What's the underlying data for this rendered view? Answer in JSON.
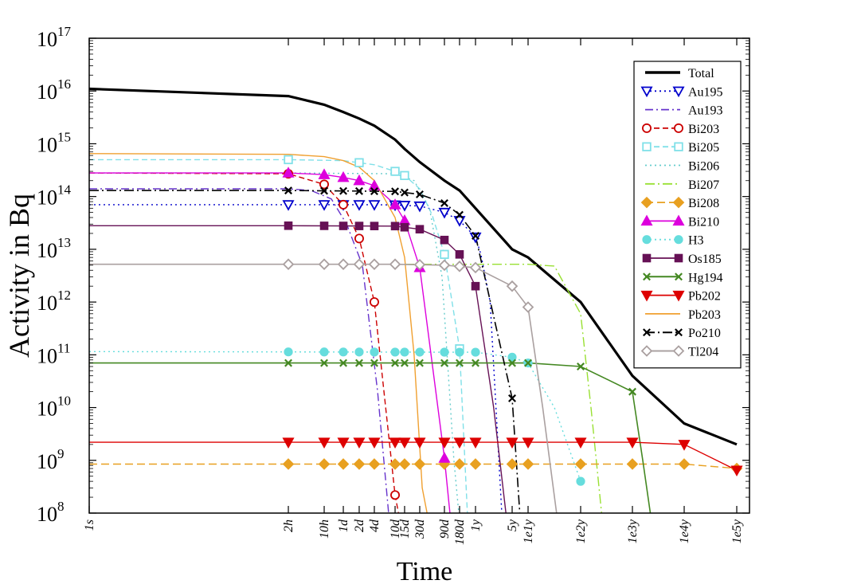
{
  "chart_data": {
    "type": "line",
    "title": "",
    "xlabel": "Time",
    "ylabel": "Activity in Bq",
    "y_scale": "log",
    "x_scale": "log",
    "ylim": [
      100000000.0,
      1e+17
    ],
    "xlim_seconds": [
      1,
      3156000000000.0
    ],
    "legend_position": "top-right",
    "x_ticks": [
      {
        "label": "1s",
        "seconds": 1
      },
      {
        "label": "2h",
        "seconds": 7200
      },
      {
        "label": "10h",
        "seconds": 36000
      },
      {
        "label": "1d",
        "seconds": 86400
      },
      {
        "label": "2d",
        "seconds": 172800
      },
      {
        "label": "4d",
        "seconds": 345600
      },
      {
        "label": "10d",
        "seconds": 864000
      },
      {
        "label": "15d",
        "seconds": 1296000
      },
      {
        "label": "30d",
        "seconds": 2592000
      },
      {
        "label": "90d",
        "seconds": 7776000
      },
      {
        "label": "180d",
        "seconds": 15552000
      },
      {
        "label": "1y",
        "seconds": 31557600
      },
      {
        "label": "5y",
        "seconds": 157788000
      },
      {
        "label": "1e1y",
        "seconds": 315576000
      },
      {
        "label": "1e2y",
        "seconds": 3155760000
      },
      {
        "label": "1e3y",
        "seconds": 31557600000
      },
      {
        "label": "1e4y",
        "seconds": 315576000000
      },
      {
        "label": "1e5y",
        "seconds": 3155760000000
      }
    ],
    "y_ticks": [
      {
        "base": "10",
        "exp": "8",
        "value": 100000000.0
      },
      {
        "base": "10",
        "exp": "9",
        "value": 1000000000.0
      },
      {
        "base": "10",
        "exp": "10",
        "value": 10000000000.0
      },
      {
        "base": "10",
        "exp": "11",
        "value": 100000000000.0
      },
      {
        "base": "10",
        "exp": "12",
        "value": 1000000000000.0
      },
      {
        "base": "10",
        "exp": "13",
        "value": 10000000000000.0
      },
      {
        "base": "10",
        "exp": "14",
        "value": 100000000000000.0
      },
      {
        "base": "10",
        "exp": "15",
        "value": 1000000000000000.0
      },
      {
        "base": "10",
        "exp": "16",
        "value": 1e+16
      },
      {
        "base": "10",
        "exp": "17",
        "value": 1e+17
      }
    ],
    "series": [
      {
        "name": "Total",
        "color": "#000000",
        "dash": "",
        "width": 3.2,
        "marker": "none",
        "x": [
          1,
          7200,
          36000,
          86400,
          172800,
          345600,
          864000,
          1296000,
          2592000,
          7776000,
          15552000,
          31557600,
          157788000,
          315576000,
          3155760000,
          31557600000,
          315576000000,
          3155760000000
        ],
        "y": [
          1.1e+16,
          8000000000000000.0,
          5500000000000000.0,
          4000000000000000.0,
          3000000000000000.0,
          2200000000000000.0,
          1200000000000000.0,
          800000000000000.0,
          450000000000000.0,
          200000000000000.0,
          130000000000000.0,
          60000000000000.0,
          10000000000000.0,
          7000000000000.0,
          1000000000000.0,
          40000000000.0,
          5000000000.0,
          2000000000.0
        ]
      },
      {
        "name": "Au195",
        "color": "#0000cc",
        "dash": "2,4",
        "width": 1.4,
        "marker": "triangle-down-open",
        "x": [
          1,
          7200,
          36000,
          86400,
          172800,
          345600,
          864000,
          1296000,
          2592000,
          7776000,
          15552000,
          31557600,
          40000000,
          60000000,
          100000000
        ],
        "y": [
          70000000000000.0,
          70000000000000.0,
          70000000000000.0,
          70000000000000.0,
          70000000000000.0,
          70000000000000.0,
          69000000000000.0,
          68000000000000.0,
          66000000000000.0,
          50000000000000.0,
          35000000000000.0,
          17000000000000.0,
          8000000000000.0,
          1000000000000.0,
          100000000.0
        ],
        "marker_x": [
          7200,
          36000,
          86400,
          172800,
          345600,
          864000,
          1296000,
          2592000,
          7776000,
          15552000,
          31557600
        ]
      },
      {
        "name": "Au193",
        "color": "#6633cc",
        "dash": "10,4,2,4",
        "width": 1.4,
        "marker": "none",
        "x": [
          1,
          7200,
          20000,
          50000,
          100000,
          200000,
          400000,
          650000
        ],
        "y": [
          140000000000000.0,
          140000000000000.0,
          130000000000000.0,
          90000000000000.0,
          30000000000000.0,
          5000000000000.0,
          20000000000.0,
          100000000.0
        ]
      },
      {
        "name": "Bi203",
        "color": "#cc0000",
        "dash": "7,4",
        "width": 1.4,
        "marker": "circle-open",
        "x": [
          1,
          7200,
          36000,
          86400,
          172800,
          345600,
          864000,
          1000000
        ],
        "y": [
          280000000000000.0,
          270000000000000.0,
          170000000000000.0,
          70000000000000.0,
          16000000000000.0,
          1000000000000.0,
          220000000.0,
          100000000.0
        ],
        "marker_x": [
          7200,
          36000,
          86400,
          172800,
          345600,
          864000
        ]
      },
      {
        "name": "Bi205",
        "color": "#80e0e8",
        "dash": "7,4",
        "width": 1.4,
        "marker": "square-open",
        "x": [
          1,
          7200,
          86400,
          345600,
          864000,
          1296000,
          2592000,
          4500000,
          7776000,
          15552000,
          22000000
        ],
        "y": [
          500000000000000.0,
          500000000000000.0,
          480000000000000.0,
          400000000000000.0,
          300000000000000.0,
          250000000000000.0,
          140000000000000.0,
          45000000000000.0,
          8000000000000.0,
          130000000000.0,
          100000000.0
        ],
        "marker_x": [
          7200,
          172800,
          864000,
          1296000,
          7776000,
          15552000
        ]
      },
      {
        "name": "Bi206",
        "color": "#66cccc",
        "dash": "2,4",
        "width": 1.4,
        "marker": "none",
        "x": [
          1,
          7200,
          864000,
          2000000,
          4000000,
          7000000,
          12000000,
          15000000
        ],
        "y": [
          280000000000000.0,
          280000000000000.0,
          270000000000000.0,
          200000000000000.0,
          60000000000000.0,
          3000000000000.0,
          1000000000.0,
          100000000.0
        ]
      },
      {
        "name": "Bi207",
        "color": "#99e033",
        "dash": "12,4,2,4",
        "width": 1.4,
        "marker": "none",
        "x": [
          1,
          315576000,
          1000000000,
          3155760000,
          5000000000,
          8000000000
        ],
        "y": [
          5200000000000.0,
          5200000000000.0,
          4800000000000.0,
          600000000000.0,
          10000000000.0,
          100000000.0
        ]
      },
      {
        "name": "Bi208",
        "color": "#e8a020",
        "dash": "10,5",
        "width": 1.4,
        "marker": "diamond-filled",
        "x": [
          1,
          315576000000,
          3155760000000
        ],
        "y": [
          850000000.0,
          850000000.0,
          700000000.0
        ],
        "marker_x": [
          7200,
          36000,
          86400,
          172800,
          345600,
          864000,
          1296000,
          2592000,
          7776000,
          15552000,
          31557600,
          157788000,
          315576000,
          3155760000,
          31557600000,
          315576000000,
          3155760000000
        ]
      },
      {
        "name": "Bi210",
        "color": "#dd00dd",
        "dash": "",
        "width": 1.4,
        "marker": "triangle-up-filled",
        "x": [
          1,
          7200,
          36000,
          86400,
          172800,
          345600,
          864000,
          1296000,
          2592000,
          7776000,
          10000000
        ],
        "y": [
          280000000000000.0,
          280000000000000.0,
          260000000000000.0,
          230000000000000.0,
          200000000000000.0,
          160000000000000.0,
          70000000000000.0,
          35000000000000.0,
          4500000000000.0,
          1100000000.0,
          100000000.0
        ],
        "marker_x": [
          7200,
          36000,
          86400,
          172800,
          345600,
          864000,
          1296000,
          2592000,
          7776000
        ]
      },
      {
        "name": "H3",
        "color": "#66dddd",
        "dash": "2,4",
        "width": 1.4,
        "marker": "circle-filled",
        "x": [
          1,
          31557600,
          157788000,
          315576000,
          1000000000,
          3155760000
        ],
        "y": [
          115000000000.0,
          112000000000.0,
          90000000000.0,
          70000000000.0,
          10000000000.0,
          400000000.0
        ],
        "marker_x": [
          7200,
          36000,
          86400,
          172800,
          345600,
          864000,
          1296000,
          2592000,
          7776000,
          15552000,
          31557600,
          157788000,
          315576000,
          3155760000
        ]
      },
      {
        "name": "Os185",
        "color": "#661155",
        "dash": "",
        "width": 1.4,
        "marker": "square-filled",
        "x": [
          1,
          7200,
          864000,
          2592000,
          7776000,
          15552000,
          31557600,
          70000000,
          120000000
        ],
        "y": [
          28000000000000.0,
          28000000000000.0,
          27500000000000.0,
          24000000000000.0,
          15000000000000.0,
          8000000000000.0,
          2000000000000.0,
          10000000000.0,
          100000000.0
        ],
        "marker_x": [
          7200,
          36000,
          86400,
          172800,
          345600,
          864000,
          1296000,
          2592000,
          7776000,
          15552000,
          31557600
        ]
      },
      {
        "name": "Hg194",
        "color": "#448822",
        "dash": "",
        "width": 1.6,
        "marker": "x",
        "x": [
          1,
          315576000,
          3155760000,
          31557600000,
          50000000000,
          70000000000
        ],
        "y": [
          70000000000.0,
          70000000000.0,
          60000000000.0,
          20000000000.0,
          1000000000.0,
          100000000.0
        ],
        "marker_x": [
          7200,
          36000,
          86400,
          172800,
          345600,
          864000,
          1296000,
          2592000,
          7776000,
          15552000,
          31557600,
          157788000,
          315576000,
          3155760000,
          31557600000
        ]
      },
      {
        "name": "Pb202",
        "color": "#dd0000",
        "dash": "",
        "width": 1.4,
        "marker": "triangle-down-filled",
        "x": [
          1,
          31557600000,
          315576000000,
          3155760000000
        ],
        "y": [
          2200000000.0,
          2200000000.0,
          2000000000.0,
          650000000.0
        ],
        "marker_x": [
          7200,
          36000,
          86400,
          172800,
          345600,
          864000,
          1296000,
          2592000,
          7776000,
          15552000,
          31557600,
          157788000,
          315576000,
          3155760000,
          31557600000,
          315576000000,
          3155760000000
        ]
      },
      {
        "name": "Pb203",
        "color": "#f0a030",
        "dash": "",
        "width": 1.4,
        "marker": "none",
        "x": [
          1,
          7200,
          36000,
          86400,
          172800,
          345600,
          864000,
          1296000,
          2000000,
          2900000,
          3600000
        ],
        "y": [
          650000000000000.0,
          630000000000000.0,
          570000000000000.0,
          480000000000000.0,
          360000000000000.0,
          200000000000000.0,
          40000000000000.0,
          7000000000000.0,
          100000000000.0,
          300000000.0,
          100000000.0
        ]
      },
      {
        "name": "Po210",
        "color": "#000000",
        "dash": "12,4,2,4",
        "width": 1.6,
        "marker": "x",
        "x": [
          1,
          7200,
          864000,
          2592000,
          7776000,
          15552000,
          31557600,
          157788000,
          220000000
        ],
        "y": [
          130000000000000.0,
          130000000000000.0,
          125000000000000.0,
          110000000000000.0,
          75000000000000.0,
          45000000000000.0,
          18000000000000.0,
          15000000000.0,
          100000000.0
        ],
        "marker_x": [
          7200,
          36000,
          86400,
          172800,
          345600,
          864000,
          1296000,
          2592000,
          7776000,
          15552000,
          31557600,
          157788000
        ]
      },
      {
        "name": "Tl204",
        "color": "#aaa0a0",
        "dash": "",
        "width": 1.6,
        "marker": "diamond-open",
        "x": [
          1,
          7200,
          864000,
          7776000,
          31557600,
          157788000,
          315576000,
          600000000,
          1100000000
        ],
        "y": [
          5200000000000.0,
          5200000000000.0,
          5200000000000.0,
          5000000000000.0,
          4500000000000.0,
          2000000000000.0,
          800000000000.0,
          10000000000.0,
          100000000.0
        ],
        "marker_x": [
          7200,
          36000,
          86400,
          172800,
          345600,
          864000,
          2592000,
          7776000,
          15552000,
          31557600,
          157788000,
          315576000
        ]
      }
    ]
  }
}
